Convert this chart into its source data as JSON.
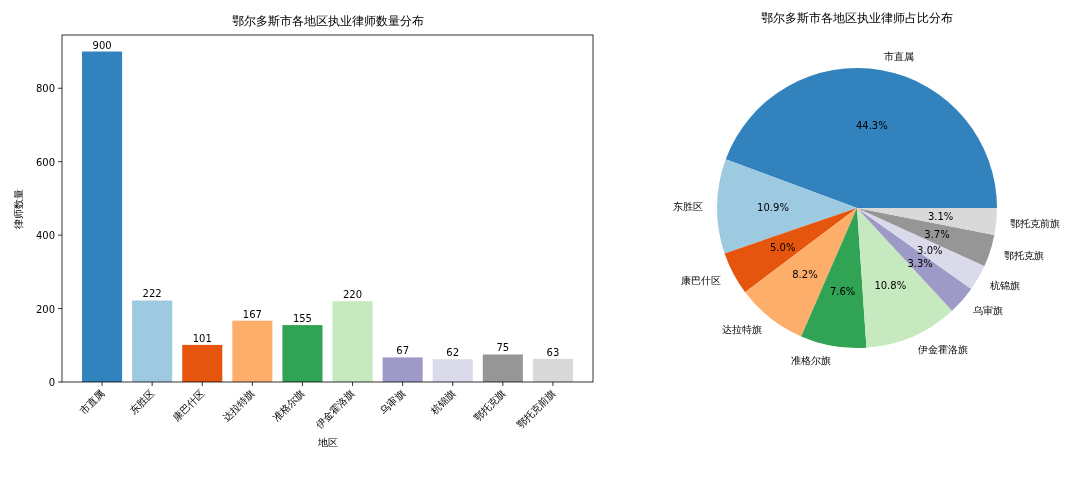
{
  "chart_data": [
    {
      "type": "bar",
      "title": "鄂尔多斯市各地区执业律师数量分布",
      "xlabel": "地区",
      "ylabel": "律师数量",
      "categories": [
        "市直属",
        "东胜区",
        "康巴什区",
        "达拉特旗",
        "准格尔旗",
        "伊金霍洛旗",
        "乌审旗",
        "杭锦旗",
        "鄂托克旗",
        "鄂托克前旗"
      ],
      "values": [
        900,
        222,
        101,
        167,
        155,
        220,
        67,
        62,
        75,
        63
      ],
      "colors": [
        "#3182bd",
        "#9ecae1",
        "#e6550d",
        "#fdae6b",
        "#31a354",
        "#c7e9c0",
        "#9e9ac8",
        "#dadaeb",
        "#969696",
        "#d9d9d9"
      ],
      "ylim": [
        0,
        945
      ],
      "yticks": [
        0,
        200,
        400,
        600,
        800
      ],
      "data_labels": true
    },
    {
      "type": "pie",
      "title": "鄂尔多斯市各地区执业律师占比分布",
      "categories": [
        "市直属",
        "东胜区",
        "康巴什区",
        "达拉特旗",
        "准格尔旗",
        "伊金霍洛旗",
        "乌审旗",
        "杭锦旗",
        "鄂托克旗",
        "鄂托克前旗"
      ],
      "values": [
        44.3,
        10.9,
        5.0,
        8.2,
        7.6,
        10.8,
        3.3,
        3.0,
        3.7,
        3.1
      ],
      "value_labels": [
        "44.3%",
        "10.9%",
        "5.0%",
        "8.2%",
        "7.6%",
        "10.8%",
        "3.3%",
        "3.0%",
        "3.7%",
        "3.1%"
      ],
      "colors": [
        "#3182bd",
        "#9ecae1",
        "#e6550d",
        "#fdae6b",
        "#31a354",
        "#c7e9c0",
        "#9e9ac8",
        "#dadaeb",
        "#969696",
        "#d9d9d9"
      ]
    }
  ]
}
